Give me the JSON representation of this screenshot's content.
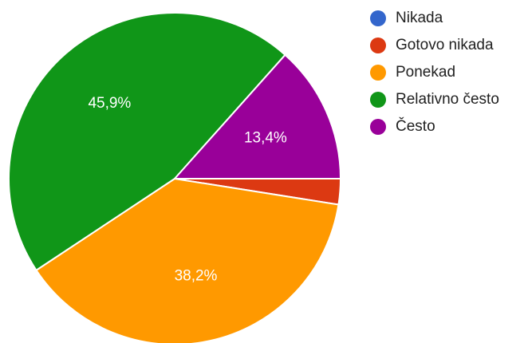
{
  "chart_data": {
    "type": "pie",
    "categories": [
      "Nikada",
      "Gotovo nikada",
      "Ponekad",
      "Relativno često",
      "Često"
    ],
    "values": [
      0,
      2.5,
      38.2,
      45.9,
      13.4
    ],
    "colors": [
      "#3366cc",
      "#dc3912",
      "#ff9900",
      "#109618",
      "#990099"
    ],
    "data_labels": [
      "",
      "",
      "38,2%",
      "45,9%",
      "13,4%"
    ],
    "start_angle_deg": 0,
    "direction": "clockwise",
    "legend_position": "top-right"
  }
}
